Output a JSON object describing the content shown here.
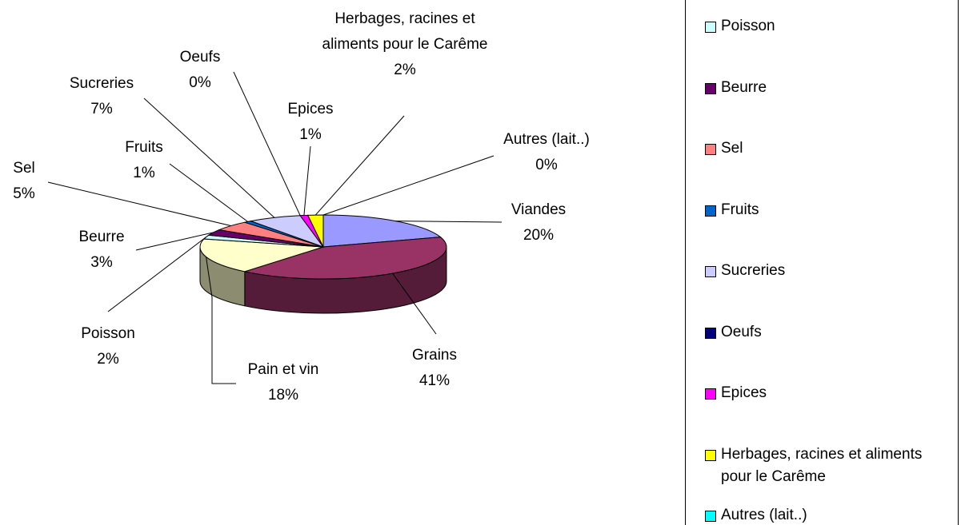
{
  "chart_data": {
    "type": "pie3d",
    "categories": [
      "Viandes",
      "Grains",
      "Pain et vin",
      "Poisson",
      "Beurre",
      "Sel",
      "Fruits",
      "Sucreries",
      "Oeufs",
      "Epices",
      "Herbages, racines et aliments pour le Carême",
      "Autres (lait..)"
    ],
    "values": [
      20,
      41,
      18,
      2,
      3,
      5,
      1,
      7,
      0,
      1,
      2,
      0
    ],
    "value_labels": [
      "20%",
      "41%",
      "18%",
      "2%",
      "3%",
      "5%",
      "1%",
      "7%",
      "0%",
      "1%",
      "2%",
      "0%"
    ],
    "colors": [
      "#9999ff",
      "#993366",
      "#ffffcc",
      "#ccffff",
      "#660066",
      "#ff8080",
      "#0066cc",
      "#ccccff",
      "#000080",
      "#ff00ff",
      "#ffff00",
      "#00ffff"
    ],
    "legend": "right"
  }
}
